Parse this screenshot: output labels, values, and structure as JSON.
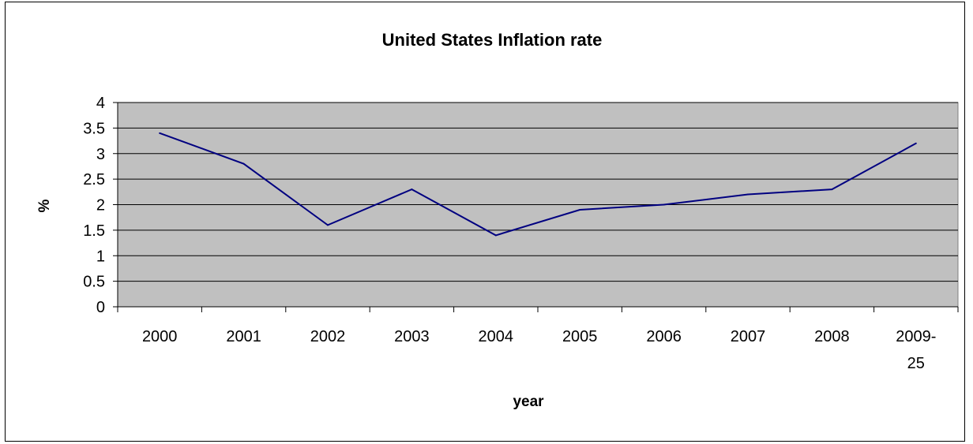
{
  "chart_data": {
    "type": "line",
    "title": "United States Inflation rate",
    "xlabel": "year",
    "ylabel": "%",
    "categories": [
      "2000",
      "2001",
      "2002",
      "2003",
      "2004",
      "2005",
      "2006",
      "2007",
      "2008",
      "2009-25"
    ],
    "category_lines": [
      [
        "2000"
      ],
      [
        "2001"
      ],
      [
        "2002"
      ],
      [
        "2003"
      ],
      [
        "2004"
      ],
      [
        "2005"
      ],
      [
        "2006"
      ],
      [
        "2007"
      ],
      [
        "2008"
      ],
      [
        "2009-",
        "25"
      ]
    ],
    "series": [
      {
        "values": [
          3.4,
          2.8,
          1.6,
          2.3,
          1.4,
          1.9,
          2.0,
          2.2,
          2.3,
          3.2
        ]
      }
    ],
    "yticks": [
      0,
      0.5,
      1,
      1.5,
      2,
      2.5,
      3,
      3.5,
      4
    ],
    "ytick_labels": [
      "0",
      "0.5",
      "1",
      "1.5",
      "2",
      "2.5",
      "3",
      "3.5",
      "4"
    ],
    "ylim": [
      0,
      4
    ],
    "grid": true,
    "legend": false,
    "colors": {
      "plot_background": "#c0c0c0",
      "line": "#000080",
      "gridline": "#000000"
    }
  }
}
